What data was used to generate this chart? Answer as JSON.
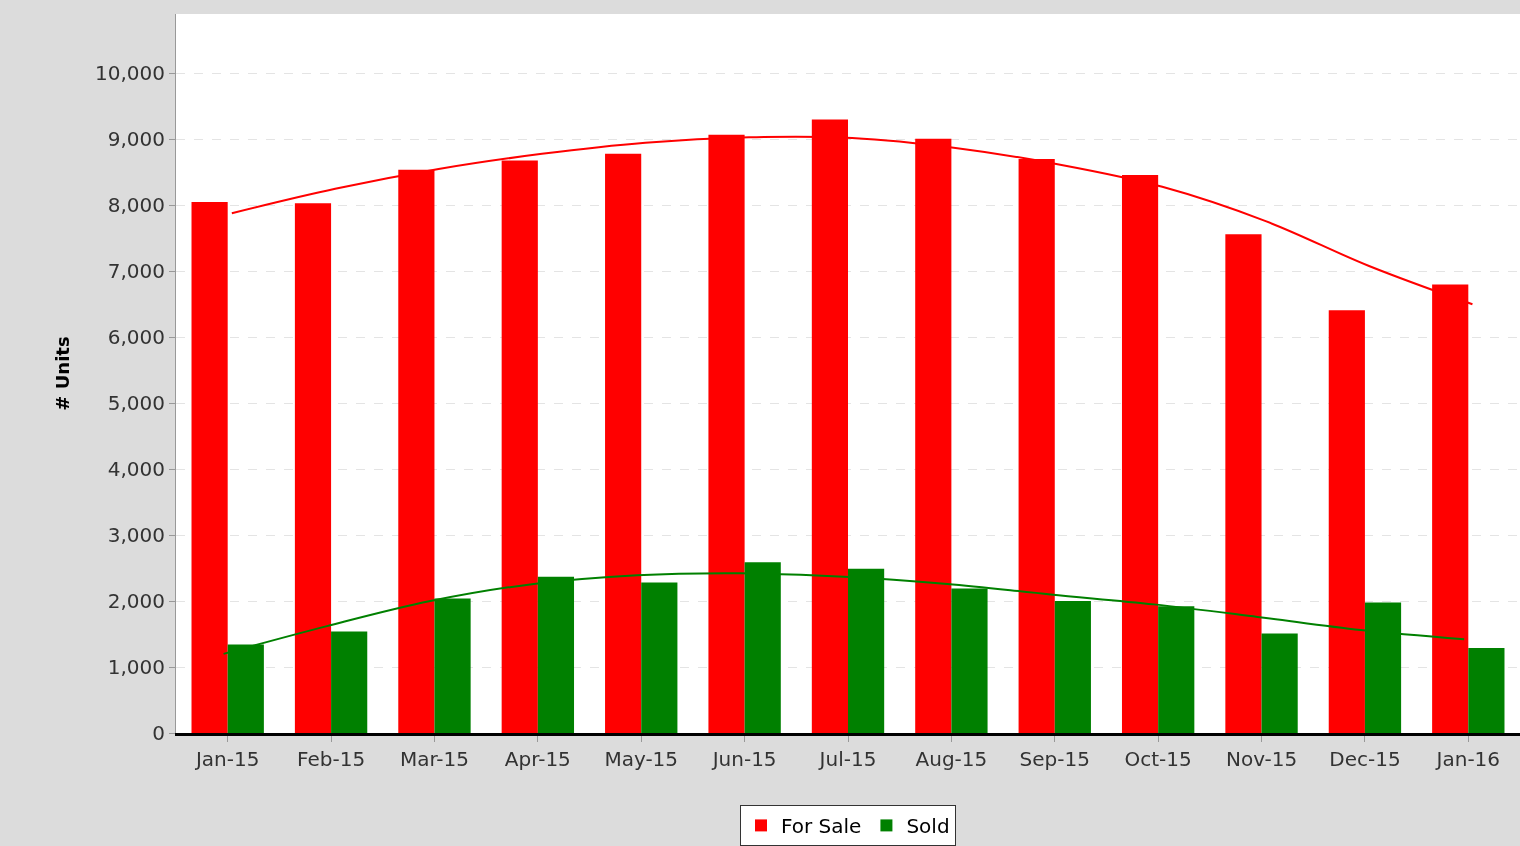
{
  "chart_data": {
    "type": "bar",
    "ylabel": "# Units",
    "categories": [
      "Jan-15",
      "Feb-15",
      "Mar-15",
      "Apr-15",
      "May-15",
      "Jun-15",
      "Jul-15",
      "Aug-15",
      "Sep-15",
      "Oct-15",
      "Nov-15",
      "Dec-15",
      "Jan-16"
    ],
    "series": [
      {
        "name": "For Sale",
        "color": "#ff0000",
        "values": [
          8050,
          8030,
          8540,
          8680,
          8780,
          9070,
          9300,
          9010,
          8700,
          8460,
          7560,
          6410,
          6800
        ]
      },
      {
        "name": "Sold",
        "color": "#008000",
        "values": [
          1340,
          1540,
          2040,
          2370,
          2280,
          2590,
          2490,
          2190,
          2000,
          1920,
          1510,
          1980,
          1290
        ]
      },
      {
        "type": "line",
        "color": "#ff0000",
        "x": [
          "Jan-15",
          "Feb-15",
          "Mar-15",
          "Apr-15",
          "May-15",
          "Jun-15",
          "Jul-15",
          "Aug-15",
          "Sep-15",
          "Oct-15",
          "Nov-15",
          "Dec-15",
          "Jan-16"
        ],
        "values": [
          7880,
          8250,
          8550,
          8780,
          8950,
          9030,
          9020,
          8870,
          8620,
          8280,
          7760,
          7080,
          6500
        ]
      },
      {
        "type": "line",
        "color": "#008000",
        "x": [
          "Jan-15",
          "Feb-15",
          "Mar-15",
          "Apr-15",
          "May-15",
          "Jun-15",
          "Jul-15",
          "Aug-15",
          "Sep-15",
          "Oct-15",
          "Nov-15",
          "Dec-15",
          "Jan-16"
        ],
        "values": [
          1200,
          1620,
          2000,
          2260,
          2390,
          2420,
          2370,
          2260,
          2100,
          1950,
          1760,
          1560,
          1420
        ]
      }
    ],
    "ylim": [
      0,
      10900
    ],
    "yticks": [
      0,
      {
        "value": 1000,
        "label": "1,000"
      },
      {
        "value": 2000,
        "label": "2,000"
      },
      {
        "value": 3000,
        "label": "3,000"
      },
      {
        "value": 4000,
        "label": "4,000"
      },
      {
        "value": 5000,
        "label": "5,000"
      },
      {
        "value": 6000,
        "label": "6,000"
      },
      {
        "value": 7000,
        "label": "7,000"
      },
      {
        "value": 8000,
        "label": "8,000"
      },
      {
        "value": 9000,
        "label": "9,000"
      },
      {
        "value": 10000,
        "label": "10,000"
      }
    ],
    "grid": "y",
    "legend": "bottom"
  }
}
